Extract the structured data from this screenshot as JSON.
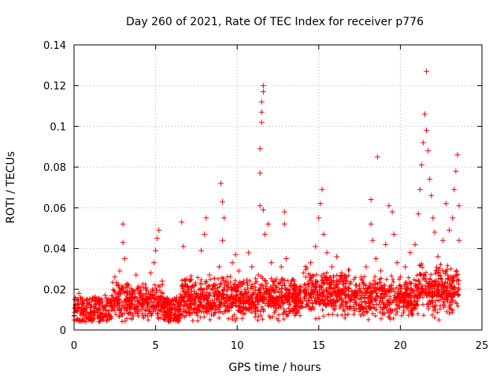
{
  "chart_data": {
    "type": "scatter",
    "title": "Day 260 of 2021, Rate Of TEC Index for receiver p776",
    "xlabel": "GPS time / hours",
    "ylabel": "ROTI / TECUs",
    "xlim": [
      0,
      25
    ],
    "ylim": [
      0,
      0.14
    ],
    "xticks": [
      0,
      5,
      10,
      15,
      20,
      25
    ],
    "yticks": [
      0,
      0.02,
      0.04,
      0.06,
      0.08,
      0.1,
      0.12,
      0.14
    ],
    "xtick_labels": [
      "0",
      "5",
      "10",
      "15",
      "20",
      "25"
    ],
    "ytick_labels": [
      "0",
      "0.02",
      "0.04",
      "0.06",
      "0.08",
      "0.1",
      "0.12",
      "0.14"
    ],
    "grid": true,
    "marker": "+",
    "series": [
      {
        "name": "ROTI",
        "color": "#ff0000",
        "points": [
          [
            0.1,
            0.012
          ],
          [
            0.3,
            0.018
          ],
          [
            0.5,
            0.009
          ],
          [
            0.8,
            0.015
          ],
          [
            1.0,
            0.011
          ],
          [
            1.3,
            0.016
          ],
          [
            1.6,
            0.013
          ],
          [
            1.9,
            0.017
          ],
          [
            2.2,
            0.014
          ],
          [
            2.5,
            0.026
          ],
          [
            2.8,
            0.029
          ],
          [
            3.0,
            0.052
          ],
          [
            3.0,
            0.043
          ],
          [
            3.1,
            0.035
          ],
          [
            3.3,
            0.022
          ],
          [
            3.6,
            0.018
          ],
          [
            3.8,
            0.027
          ],
          [
            4.1,
            0.016
          ],
          [
            4.4,
            0.021
          ],
          [
            4.7,
            0.028
          ],
          [
            4.9,
            0.033
          ],
          [
            5.0,
            0.039
          ],
          [
            5.1,
            0.045
          ],
          [
            5.2,
            0.049
          ],
          [
            5.4,
            0.024
          ],
          [
            5.7,
            0.012
          ],
          [
            6.0,
            0.011
          ],
          [
            6.3,
            0.016
          ],
          [
            6.6,
            0.053
          ],
          [
            6.7,
            0.041
          ],
          [
            6.9,
            0.025
          ],
          [
            7.2,
            0.021
          ],
          [
            7.5,
            0.018
          ],
          [
            7.8,
            0.039
          ],
          [
            8.0,
            0.047
          ],
          [
            8.1,
            0.055
          ],
          [
            8.3,
            0.027
          ],
          [
            8.6,
            0.022
          ],
          [
            8.9,
            0.031
          ],
          [
            9.0,
            0.072
          ],
          [
            9.1,
            0.063
          ],
          [
            9.2,
            0.055
          ],
          [
            9.1,
            0.044
          ],
          [
            9.4,
            0.026
          ],
          [
            9.7,
            0.033
          ],
          [
            9.9,
            0.037
          ],
          [
            10.1,
            0.029
          ],
          [
            10.4,
            0.024
          ],
          [
            10.7,
            0.038
          ],
          [
            10.9,
            0.031
          ],
          [
            11.1,
            0.021
          ],
          [
            11.3,
            0.027
          ],
          [
            11.4,
            0.061
          ],
          [
            11.4,
            0.077
          ],
          [
            11.4,
            0.089
          ],
          [
            11.5,
            0.107
          ],
          [
            11.5,
            0.112
          ],
          [
            11.6,
            0.12
          ],
          [
            11.6,
            0.117
          ],
          [
            11.5,
            0.102
          ],
          [
            11.6,
            0.059
          ],
          [
            11.7,
            0.047
          ],
          [
            11.9,
            0.052
          ],
          [
            12.1,
            0.033
          ],
          [
            12.4,
            0.025
          ],
          [
            12.7,
            0.031
          ],
          [
            12.9,
            0.058
          ],
          [
            12.9,
            0.052
          ],
          [
            13.0,
            0.035
          ],
          [
            13.3,
            0.022
          ],
          [
            13.6,
            0.018
          ],
          [
            13.9,
            0.021
          ],
          [
            14.2,
            0.026
          ],
          [
            14.5,
            0.033
          ],
          [
            14.8,
            0.041
          ],
          [
            15.0,
            0.055
          ],
          [
            15.1,
            0.062
          ],
          [
            15.2,
            0.069
          ],
          [
            15.3,
            0.047
          ],
          [
            15.5,
            0.038
          ],
          [
            15.8,
            0.031
          ],
          [
            16.1,
            0.036
          ],
          [
            16.4,
            0.028
          ],
          [
            16.7,
            0.024
          ],
          [
            17.0,
            0.019
          ],
          [
            17.3,
            0.022
          ],
          [
            17.6,
            0.026
          ],
          [
            17.9,
            0.031
          ],
          [
            18.2,
            0.064
          ],
          [
            18.2,
            0.052
          ],
          [
            18.3,
            0.044
          ],
          [
            18.5,
            0.035
          ],
          [
            18.6,
            0.085
          ],
          [
            18.8,
            0.029
          ],
          [
            19.1,
            0.042
          ],
          [
            19.3,
            0.061
          ],
          [
            19.5,
            0.058
          ],
          [
            19.6,
            0.047
          ],
          [
            19.8,
            0.033
          ],
          [
            20.0,
            0.026
          ],
          [
            20.3,
            0.031
          ],
          [
            20.6,
            0.038
          ],
          [
            20.9,
            0.042
          ],
          [
            21.1,
            0.057
          ],
          [
            21.2,
            0.069
          ],
          [
            21.3,
            0.081
          ],
          [
            21.4,
            0.092
          ],
          [
            21.5,
            0.106
          ],
          [
            21.6,
            0.127
          ],
          [
            21.6,
            0.098
          ],
          [
            21.7,
            0.088
          ],
          [
            21.8,
            0.074
          ],
          [
            21.9,
            0.066
          ],
          [
            22.0,
            0.055
          ],
          [
            22.1,
            0.048
          ],
          [
            22.3,
            0.036
          ],
          [
            22.6,
            0.044
          ],
          [
            22.8,
            0.062
          ],
          [
            23.0,
            0.049
          ],
          [
            23.2,
            0.055
          ],
          [
            23.3,
            0.069
          ],
          [
            23.4,
            0.078
          ],
          [
            23.5,
            0.086
          ],
          [
            23.6,
            0.061
          ],
          [
            23.6,
            0.044
          ]
        ]
      }
    ]
  }
}
